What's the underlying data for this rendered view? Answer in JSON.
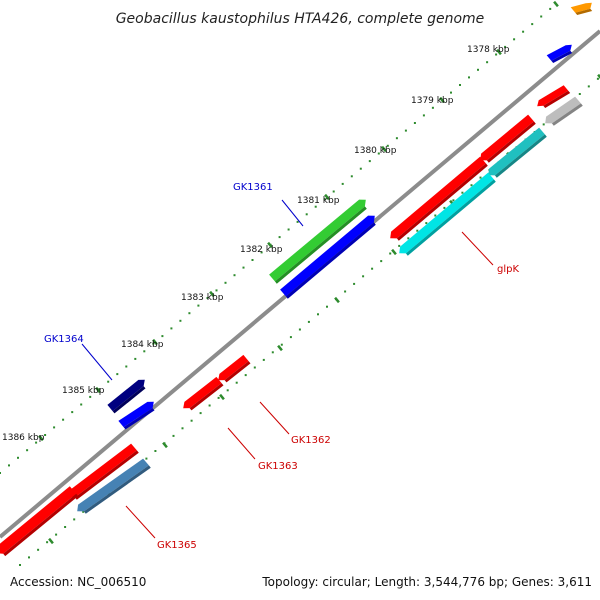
{
  "title": "Geobacillus kaustophilus HTA426, complete genome",
  "footer": {
    "accession": "Accession: NC_006510",
    "stats": "Topology: circular; Length: 3,544,776 bp; Genes: 3,611"
  },
  "colors": {
    "backbone": "#8c8c8c",
    "tick": "#2e8b2e",
    "label_forward": "#0000cc",
    "label_reverse": "#cc0000"
  },
  "kbp_ticks": [
    "1378 kbp",
    "1379 kbp",
    "1380 kbp",
    "1381 kbp",
    "1382 kbp",
    "1383 kbp",
    "1384 kbp",
    "1385 kbp",
    "1386 kbp"
  ],
  "features": [
    {
      "id": "f-orange",
      "color": "#ff9900",
      "strand": "forward",
      "track": 2
    },
    {
      "id": "f-blue-top",
      "color": "#0000ff",
      "strand": "forward",
      "track": 1
    },
    {
      "id": "f-red-small-top",
      "color": "#ff0000",
      "strand": "reverse",
      "track": 1
    },
    {
      "id": "f-gray",
      "color": "#bdbdbd",
      "strand": "reverse",
      "track": 2
    },
    {
      "id": "f-red-mid",
      "color": "#ff0000",
      "strand": "reverse",
      "track": 1
    },
    {
      "id": "f-teal",
      "color": "#20c0c0",
      "strand": "reverse",
      "track": 2
    },
    {
      "id": "glpK-red",
      "color": "#ff0000",
      "strand": "reverse",
      "track": 1
    },
    {
      "id": "glpK",
      "color": "#00e5e5",
      "strand": "reverse",
      "track": 2
    },
    {
      "id": "GK1361-green",
      "color": "#33cc33",
      "strand": "forward",
      "track": 2
    },
    {
      "id": "GK1361",
      "color": "#0000ff",
      "strand": "forward",
      "track": 1
    },
    {
      "id": "GK1362",
      "color": "#ff0000",
      "strand": "reverse",
      "track": 1
    },
    {
      "id": "GK1363",
      "color": "#ff0000",
      "strand": "reverse",
      "track": 1
    },
    {
      "id": "GK1364",
      "color": "#000080",
      "strand": "forward",
      "track": 2
    },
    {
      "id": "f-blue-small",
      "color": "#0000ff",
      "strand": "forward",
      "track": 1
    },
    {
      "id": "f-red-low",
      "color": "#ff0000",
      "strand": "reverse",
      "track": 1
    },
    {
      "id": "GK1365",
      "color": "#4682b4",
      "strand": "reverse",
      "track": 2
    },
    {
      "id": "f-red-bottom",
      "color": "#ff0000",
      "strand": "reverse",
      "track": 1
    }
  ],
  "gene_labels": [
    {
      "id": "GK1361",
      "text": "GK1361",
      "strand": "forward"
    },
    {
      "id": "GK1364",
      "text": "GK1364",
      "strand": "forward"
    },
    {
      "id": "glpK",
      "text": "glpK",
      "strand": "reverse"
    },
    {
      "id": "GK1362",
      "text": "GK1362",
      "strand": "reverse"
    },
    {
      "id": "GK1363",
      "text": "GK1363",
      "strand": "reverse"
    },
    {
      "id": "GK1365",
      "text": "GK1365",
      "strand": "reverse"
    }
  ]
}
